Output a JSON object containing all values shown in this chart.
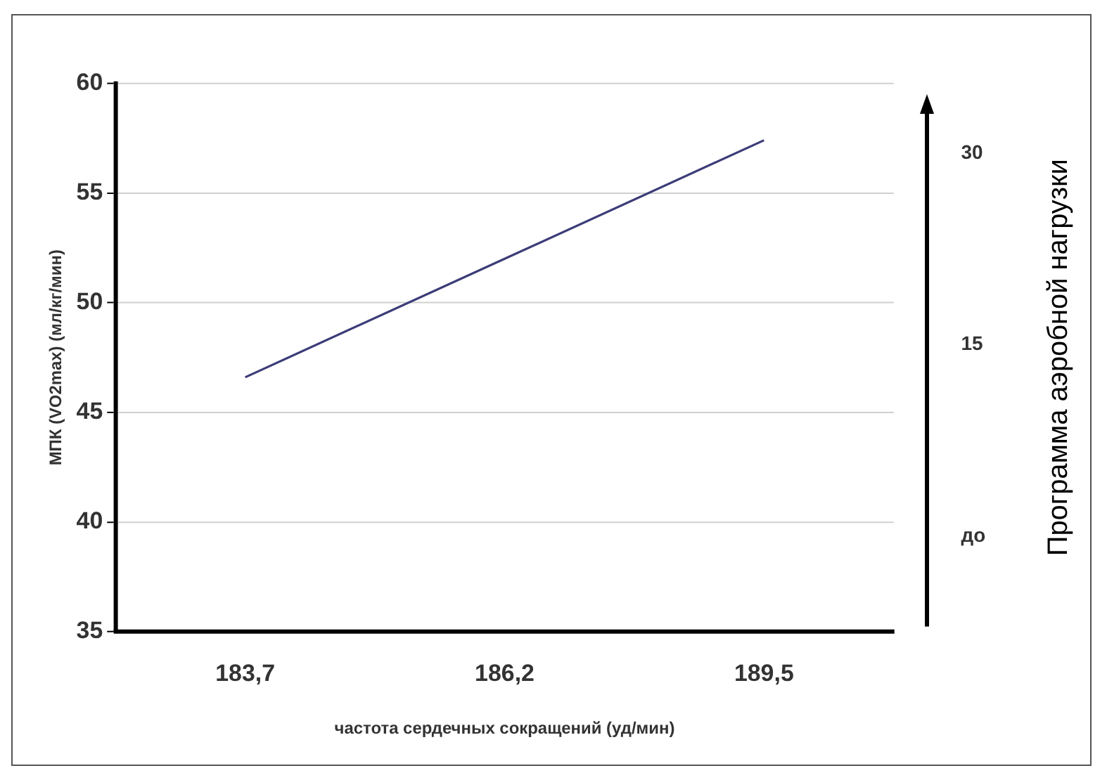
{
  "chart_data": {
    "type": "line",
    "xlabel": "частота сердечных сокращений (уд/мин)",
    "ylabel": "МПК (VO2max) (мл/кг/мин)",
    "y2label": "Программа аэробной нагрузки",
    "categories": [
      "183,7",
      "186,2",
      "189,5"
    ],
    "series": [
      {
        "color": "#3c3c78",
        "values": [
          46.6,
          52.0,
          57.4
        ]
      }
    ],
    "ylim": [
      35,
      60
    ],
    "yticks": [
      35,
      40,
      45,
      50,
      55,
      60
    ],
    "y2lim": [
      -7.5,
      35.5
    ],
    "y2ticks": [
      {
        "value": 0,
        "label": "до"
      },
      15,
      30
    ],
    "grid": "y",
    "legend": false,
    "marker": "none",
    "line_style": "solid"
  }
}
